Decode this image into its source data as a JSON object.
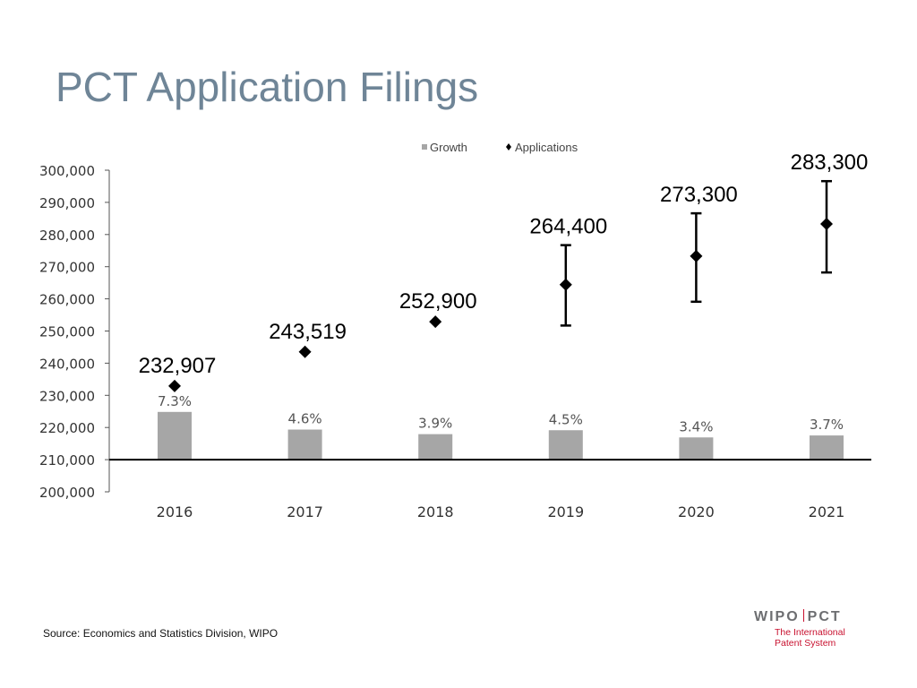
{
  "slide": {
    "title": "PCT Application Filings",
    "source": "Source:  Economics and Statistics Division, WIPO",
    "logo": {
      "left": "WIPO",
      "right": "PCT",
      "subtitle_line1": "The International",
      "subtitle_line2": "Patent System"
    }
  },
  "colors": {
    "title": "#6f8597",
    "bar": "#a6a6a6",
    "marker": "#000000",
    "brand_red": "#c8102e"
  },
  "chart_data": {
    "type": "bar",
    "title": "",
    "xlabel": "",
    "ylabel": "",
    "categories": [
      "2016",
      "2017",
      "2018",
      "2019",
      "2020",
      "2021"
    ],
    "ylim": [
      200000,
      300000
    ],
    "yticks": [
      200000,
      210000,
      220000,
      230000,
      240000,
      250000,
      260000,
      270000,
      280000,
      290000,
      300000
    ],
    "ytick_labels": [
      "200,000",
      "210,000",
      "220,000",
      "230,000",
      "240,000",
      "250,000",
      "260,000",
      "270,000",
      "280,000",
      "290,000",
      "300,000"
    ],
    "grid": false,
    "legend": {
      "position": "top",
      "entries": [
        "Growth",
        "Applications"
      ]
    },
    "series": [
      {
        "name": "Growth",
        "type": "bar",
        "values": [
          7.3,
          4.6,
          3.9,
          4.5,
          3.4,
          3.7
        ],
        "labels": [
          "7.3%",
          "4.6%",
          "3.9%",
          "4.5%",
          "3.4%",
          "3.7%"
        ]
      },
      {
        "name": "Applications",
        "type": "scatter",
        "values": [
          232907,
          243519,
          252900,
          264400,
          273300,
          283300
        ],
        "labels": [
          "232,907",
          "243,519",
          "252,900",
          "264,400",
          "273,300",
          "283,300"
        ],
        "error_low": [
          null,
          null,
          null,
          251700,
          259100,
          268200
        ],
        "error_high": [
          null,
          null,
          null,
          276700,
          286600,
          296600
        ]
      }
    ]
  }
}
